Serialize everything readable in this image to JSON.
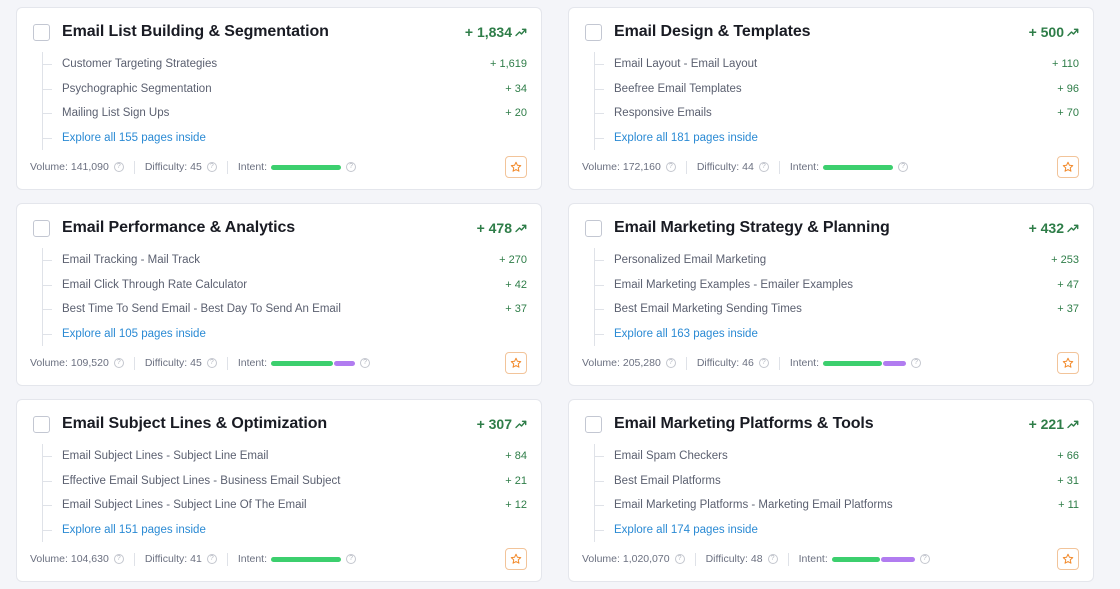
{
  "colors": {
    "growth_green": "#2e7d48",
    "link_blue": "#2a8ad4",
    "intent_commercial": "#3ccf6e",
    "intent_transactional": "#b17cf0",
    "star_orange": "#f28a2b"
  },
  "icons": {
    "trend": "trending-up-icon",
    "help": "question-circle-icon",
    "favorite": "star-icon"
  },
  "cards": [
    {
      "title": "Email List Building & Segmentation",
      "growth": "+ 1,834",
      "subtopics": [
        {
          "label": "Customer Targeting Strategies",
          "value": "+ 1,619"
        },
        {
          "label": "Psychographic Segmentation",
          "value": "+ 34"
        },
        {
          "label": "Mailing List Sign Ups",
          "value": "+ 20"
        }
      ],
      "explore": "Explore all 155 pages inside",
      "volume": "Volume: 141,090",
      "difficulty": "Difficulty: 45",
      "intent_label": "Intent:",
      "intent": [
        {
          "type": "commercial",
          "share": 1.0
        }
      ]
    },
    {
      "title": "Email Design & Templates",
      "growth": "+ 500",
      "subtopics": [
        {
          "label": "Email Layout - Email Layout",
          "value": "+ 110"
        },
        {
          "label": "Beefree Email Templates",
          "value": "+ 96"
        },
        {
          "label": "Responsive Emails",
          "value": "+ 70"
        }
      ],
      "explore": "Explore all 181 pages inside",
      "volume": "Volume: 172,160",
      "difficulty": "Difficulty: 44",
      "intent_label": "Intent:",
      "intent": [
        {
          "type": "commercial",
          "share": 1.0
        }
      ]
    },
    {
      "title": "Email Performance & Analytics",
      "growth": "+ 478",
      "subtopics": [
        {
          "label": "Email Tracking - Mail Track",
          "value": "+ 270"
        },
        {
          "label": "Email Click Through Rate Calculator",
          "value": "+ 42"
        },
        {
          "label": "Best Time To Send Email - Best Day To Send An Email",
          "value": "+ 37"
        }
      ],
      "explore": "Explore all 105 pages inside",
      "volume": "Volume: 109,520",
      "difficulty": "Difficulty: 45",
      "intent_label": "Intent:",
      "intent": [
        {
          "type": "commercial",
          "share": 0.75
        },
        {
          "type": "transactional",
          "share": 0.25
        }
      ]
    },
    {
      "title": "Email Marketing Strategy & Planning",
      "growth": "+ 432",
      "subtopics": [
        {
          "label": "Personalized Email Marketing",
          "value": "+ 253"
        },
        {
          "label": "Email Marketing Examples - Emailer Examples",
          "value": "+ 47"
        },
        {
          "label": "Best Email Marketing Sending Times",
          "value": "+ 37"
        }
      ],
      "explore": "Explore all 163 pages inside",
      "volume": "Volume: 205,280",
      "difficulty": "Difficulty: 46",
      "intent_label": "Intent:",
      "intent": [
        {
          "type": "commercial",
          "share": 0.72
        },
        {
          "type": "transactional",
          "share": 0.28
        }
      ]
    },
    {
      "title": "Email Subject Lines & Optimization",
      "growth": "+ 307",
      "subtopics": [
        {
          "label": "Email Subject Lines - Subject Line Email",
          "value": "+ 84"
        },
        {
          "label": "Effective Email Subject Lines - Business Email Subject",
          "value": "+ 21"
        },
        {
          "label": "Email Subject Lines - Subject Line Of The Email",
          "value": "+ 12"
        }
      ],
      "explore": "Explore all 151 pages inside",
      "volume": "Volume: 104,630",
      "difficulty": "Difficulty: 41",
      "intent_label": "Intent:",
      "intent": [
        {
          "type": "commercial",
          "share": 1.0
        }
      ]
    },
    {
      "title": "Email Marketing Platforms & Tools",
      "growth": "+ 221",
      "subtopics": [
        {
          "label": "Email Spam Checkers",
          "value": "+ 66"
        },
        {
          "label": "Best Email Platforms",
          "value": "+ 31"
        },
        {
          "label": "Email Marketing Platforms - Marketing Email Platforms",
          "value": "+ 11"
        }
      ],
      "explore": "Explore all 174 pages inside",
      "volume": "Volume: 1,020,070",
      "difficulty": "Difficulty: 48",
      "intent_label": "Intent:",
      "intent": [
        {
          "type": "commercial",
          "share": 0.58
        },
        {
          "type": "transactional",
          "share": 0.42
        }
      ]
    }
  ]
}
